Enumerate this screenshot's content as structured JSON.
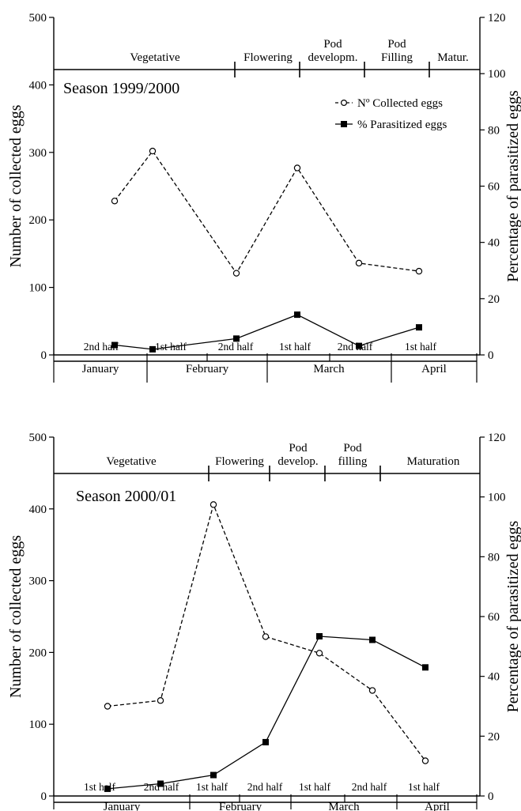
{
  "chart_data": [
    {
      "type": "line",
      "title": "Season 1999/2000",
      "ylabel": "Number of collected eggs",
      "y2label": "Percentage of parasitized eggs",
      "ylim": [
        0,
        500
      ],
      "y2lim": [
        0,
        120
      ],
      "yticks": [
        "0",
        "100",
        "200",
        "300",
        "400",
        "500"
      ],
      "y2ticks": [
        "0",
        "20",
        "40",
        "60",
        "80",
        "100",
        "120"
      ],
      "legend_position": "top-right",
      "grid": false,
      "x": [
        "January 2nd half",
        "February 1st half",
        "February 2nd half",
        "March 1st half",
        "March 2nd half",
        "April 1st half"
      ],
      "periods": [
        "2nd half",
        "1st half",
        "2nd half",
        "1st half",
        "2nd half",
        "1st half"
      ],
      "months": [
        "January",
        "February",
        "March",
        "April"
      ],
      "stages": [
        {
          "label": "Vegetative"
        },
        {
          "label": "Flowering"
        },
        {
          "label": "Pod developm.",
          "lines": [
            "Pod",
            "developm."
          ]
        },
        {
          "label": "Pod Filling",
          "lines": [
            "Pod",
            "Filling"
          ]
        },
        {
          "label": "Matur."
        }
      ],
      "series": [
        {
          "name": "Nº Collected eggs",
          "axis": "left",
          "style": "dashed",
          "marker": "open-circle",
          "values": [
            228,
            302,
            121,
            277,
            136,
            124
          ]
        },
        {
          "name": "% Parasitized eggs",
          "axis": "right",
          "style": "solid",
          "marker": "filled-square",
          "values": [
            3.5,
            2.0,
            5.8,
            14.3,
            3.2,
            9.8
          ]
        }
      ]
    },
    {
      "type": "line",
      "title": "Season 2000/01",
      "ylabel": "Number of collected eggs",
      "y2label": "Percentage of parasitized eggs",
      "ylim": [
        0,
        500
      ],
      "y2lim": [
        0,
        120
      ],
      "yticks": [
        "0",
        "100",
        "200",
        "300",
        "400",
        "500"
      ],
      "y2ticks": [
        "0",
        "20",
        "40",
        "60",
        "80",
        "100",
        "120"
      ],
      "legend_position": "none",
      "grid": false,
      "x": [
        "January 1st half",
        "January 2nd half",
        "February 1st half",
        "February 2nd half",
        "March 1st half",
        "March 2nd half",
        "April 1st half"
      ],
      "periods": [
        "1st half",
        "2nd half",
        "1st half",
        "2nd half",
        "1st half",
        "2nd half",
        "1st half"
      ],
      "months": [
        "January",
        "February",
        "March",
        "April"
      ],
      "stages": [
        {
          "label": "Vegetative"
        },
        {
          "label": "Flowering"
        },
        {
          "label": "Pod develop.",
          "lines": [
            "Pod",
            "develop."
          ]
        },
        {
          "label": "Pod filling",
          "lines": [
            "Pod",
            "filling"
          ]
        },
        {
          "label": "Maturation"
        }
      ],
      "series": [
        {
          "name": "Nº Collected eggs",
          "axis": "left",
          "style": "dashed",
          "marker": "open-circle",
          "values": [
            125,
            133,
            406,
            222,
            199,
            147,
            49
          ]
        },
        {
          "name": "% Parasitized eggs",
          "axis": "right",
          "style": "solid",
          "marker": "filled-square",
          "values": [
            2.4,
            4.1,
            7.0,
            18.0,
            53.4,
            52.2,
            43.0
          ]
        }
      ]
    }
  ]
}
